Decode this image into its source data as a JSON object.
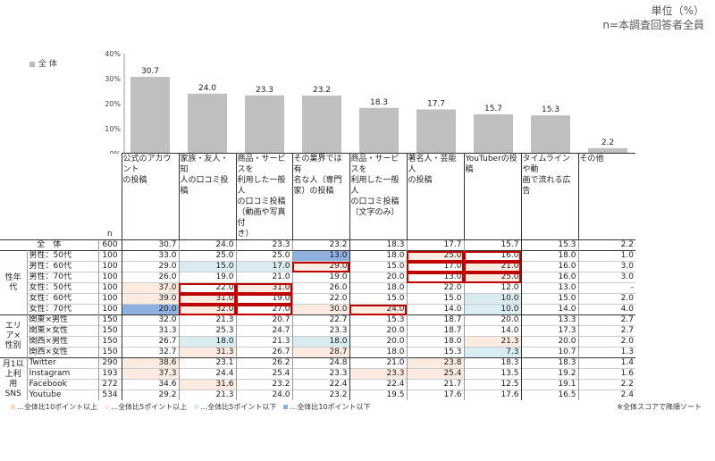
{
  "unit_line1": "単位（%）",
  "unit_line2": "n=本調査回答者全員",
  "legend_label": "全 体",
  "n_label": "n",
  "chart_data": {
    "type": "bar",
    "ylim": [
      0,
      40
    ],
    "yticks": [
      "40%",
      "30%",
      "20%",
      "10%",
      "0%"
    ],
    "categories": [
      "公式のアカウントの投稿",
      "家族・友人・知人の口コミ投稿",
      "商品・サービスを利用した一般人の口コミ投稿（動画や写真付き）",
      "その業界では有名な人（専門家）の投稿",
      "商品・サービスを利用した一般人の口コミ投稿（文字のみ）",
      "著名人・芸能人の投稿",
      "YouTuberの投稿",
      "タイムラインや動画で流れる広告",
      "その他"
    ],
    "values": [
      30.7,
      24.0,
      23.3,
      23.2,
      18.3,
      17.7,
      15.7,
      15.3,
      2.2
    ],
    "value_labels": [
      "30.7",
      "24.0",
      "23.3",
      "23.2",
      "18.3",
      "17.7",
      "15.7",
      "15.3",
      "2.2"
    ],
    "colors": {
      "bar": "#bfbfbf",
      "p10": "#f8d7c2",
      "p5": "#fcebe0",
      "m5": "#d9ecf2",
      "m10": "#8fb1e0",
      "highlight": "#c00000"
    }
  },
  "table": {
    "headers": [
      [
        "公式のアカウント",
        "の投稿"
      ],
      [
        "家族・友人・知",
        "人の口コミ投稿"
      ],
      [
        "商品・サービスを",
        "利用した一般人",
        "の口コミ投稿",
        "（動画や写真付",
        "き）"
      ],
      [
        "その業界では有",
        "名な人（専門",
        "家）の投稿"
      ],
      [
        "商品・サービスを",
        "利用した一般人",
        "の口コミ投稿",
        "（文字のみ）"
      ],
      [
        "著名人・芸能人",
        "の投稿"
      ],
      [
        "YouTuberの投",
        "稿"
      ],
      [
        "タイムラインや動",
        "画で流れる広告"
      ],
      [
        "その他"
      ]
    ],
    "rows": [
      {
        "group": "",
        "label": "全　体",
        "n": "600",
        "vals": [
          "30.7",
          "24.0",
          "23.3",
          "23.2",
          "18.3",
          "17.7",
          "15.7",
          "15.3",
          "2.2"
        ],
        "style": [
          "",
          "",
          "",
          "",
          "",
          "",
          "",
          "",
          ""
        ],
        "box": [
          0,
          0,
          0,
          0,
          0,
          0,
          0,
          0,
          0
        ]
      },
      {
        "group": "性年代",
        "label": "男性：50代",
        "n": "100",
        "vals": [
          "33.0",
          "25.0",
          "25.0",
          "13.0",
          "18.0",
          "25.0",
          "16.0",
          "18.0",
          "1.0"
        ],
        "style": [
          "",
          "",
          "",
          "m10",
          "",
          "p5",
          "",
          "",
          ""
        ],
        "box": [
          0,
          0,
          0,
          0,
          0,
          1,
          1,
          0,
          0
        ]
      },
      {
        "group": "",
        "label": "男性：60代",
        "n": "100",
        "vals": [
          "29.0",
          "15.0",
          "17.0",
          "29.0",
          "15.0",
          "17.0",
          "21.0",
          "16.0",
          "3.0"
        ],
        "style": [
          "",
          "m5",
          "m5",
          "p5",
          "",
          "",
          "p5",
          "",
          ""
        ],
        "box": [
          0,
          0,
          0,
          1,
          0,
          1,
          1,
          0,
          0
        ]
      },
      {
        "group": "",
        "label": "男性：70代",
        "n": "100",
        "vals": [
          "26.0",
          "19.0",
          "21.0",
          "19.0",
          "20.0",
          "13.0",
          "25.0",
          "16.0",
          "3.0"
        ],
        "style": [
          "",
          "",
          "",
          "",
          "",
          "",
          "p5",
          "",
          ""
        ],
        "box": [
          0,
          0,
          0,
          0,
          0,
          1,
          1,
          0,
          0
        ]
      },
      {
        "group": "",
        "label": "女性：50代",
        "n": "100",
        "vals": [
          "37.0",
          "22.0",
          "31.0",
          "26.0",
          "18.0",
          "22.0",
          "12.0",
          "13.0",
          "-"
        ],
        "style": [
          "p5",
          "",
          "p5",
          "",
          "",
          "",
          "",
          "",
          ""
        ],
        "box": [
          0,
          1,
          1,
          0,
          0,
          0,
          0,
          0,
          0
        ]
      },
      {
        "group": "",
        "label": "女性：60代",
        "n": "100",
        "vals": [
          "39.0",
          "31.0",
          "19.0",
          "22.0",
          "15.0",
          "15.0",
          "10.0",
          "15.0",
          "2.0"
        ],
        "style": [
          "p5",
          "p5",
          "",
          "",
          "",
          "",
          "m5",
          "",
          ""
        ],
        "box": [
          0,
          1,
          1,
          0,
          0,
          0,
          0,
          0,
          0
        ]
      },
      {
        "group": "",
        "label": "女性：70代",
        "n": "100",
        "vals": [
          "20.0",
          "32.0",
          "27.0",
          "30.0",
          "24.0",
          "14.0",
          "10.0",
          "14.0",
          "4.0"
        ],
        "style": [
          "m10",
          "p5",
          "",
          "p5",
          "p5",
          "",
          "m5",
          "",
          ""
        ],
        "box": [
          0,
          1,
          1,
          0,
          1,
          0,
          0,
          0,
          0
        ]
      },
      {
        "group": "エリア×性別",
        "label": "関東×男性",
        "n": "150",
        "vals": [
          "32.0",
          "21.3",
          "20.7",
          "22.7",
          "15.3",
          "18.7",
          "20.0",
          "13.3",
          "2.7"
        ],
        "style": [
          "",
          "",
          "",
          "",
          "",
          "",
          "",
          "",
          ""
        ],
        "box": [
          0,
          0,
          0,
          0,
          0,
          0,
          0,
          0,
          0
        ]
      },
      {
        "group": "",
        "label": "関東×女性",
        "n": "150",
        "vals": [
          "31.3",
          "25.3",
          "24.7",
          "23.3",
          "20.0",
          "18.7",
          "14.0",
          "17.3",
          "2.7"
        ],
        "style": [
          "",
          "",
          "",
          "",
          "",
          "",
          "",
          "",
          ""
        ],
        "box": [
          0,
          0,
          0,
          0,
          0,
          0,
          0,
          0,
          0
        ]
      },
      {
        "group": "",
        "label": "関西×男性",
        "n": "150",
        "vals": [
          "26.7",
          "18.0",
          "21.3",
          "18.0",
          "20.0",
          "18.0",
          "21.3",
          "20.0",
          "2.0"
        ],
        "style": [
          "",
          "m5",
          "",
          "m5",
          "",
          "",
          "p5",
          "",
          ""
        ],
        "box": [
          0,
          0,
          0,
          0,
          0,
          0,
          0,
          0,
          0
        ]
      },
      {
        "group": "",
        "label": "関西×女性",
        "n": "150",
        "vals": [
          "32.7",
          "31.3",
          "26.7",
          "28.7",
          "18.0",
          "15.3",
          "7.3",
          "10.7",
          "1.3"
        ],
        "style": [
          "",
          "p5",
          "",
          "p5",
          "",
          "",
          "m5",
          "",
          ""
        ],
        "box": [
          0,
          0,
          0,
          0,
          0,
          0,
          0,
          0,
          0
        ]
      },
      {
        "group": "月1以上利用SNS",
        "label": "Twitter",
        "n": "290",
        "vals": [
          "38.6",
          "23.1",
          "26.2",
          "24.8",
          "21.0",
          "23.8",
          "18.3",
          "18.3",
          "1.4"
        ],
        "style": [
          "p5",
          "",
          "",
          "",
          "",
          "p5",
          "",
          "",
          ""
        ],
        "box": [
          0,
          0,
          0,
          0,
          0,
          0,
          0,
          0,
          0
        ]
      },
      {
        "group": "",
        "label": "Instagram",
        "n": "193",
        "vals": [
          "37.3",
          "24.4",
          "25.4",
          "23.3",
          "23.3",
          "25.4",
          "13.5",
          "19.2",
          "1.6"
        ],
        "style": [
          "p5",
          "",
          "",
          "",
          "p5",
          "p5",
          "",
          "",
          ""
        ],
        "box": [
          0,
          0,
          0,
          0,
          0,
          0,
          0,
          0,
          0
        ]
      },
      {
        "group": "",
        "label": "Facebook",
        "n": "272",
        "vals": [
          "34.6",
          "31.6",
          "23.2",
          "22.4",
          "22.4",
          "21.7",
          "12.5",
          "19.1",
          "2.2"
        ],
        "style": [
          "",
          "p5",
          "",
          "",
          "",
          "",
          "",
          "",
          ""
        ],
        "box": [
          0,
          0,
          0,
          0,
          0,
          0,
          0,
          0,
          0
        ]
      },
      {
        "group": "",
        "label": "Youtube",
        "n": "534",
        "vals": [
          "29.2",
          "21.3",
          "24.0",
          "23.2",
          "19.5",
          "17.6",
          "17.6",
          "16.5",
          "2.4"
        ],
        "style": [
          "",
          "",
          "",
          "",
          "",
          "",
          "",
          "",
          ""
        ],
        "box": [
          0,
          0,
          0,
          0,
          0,
          0,
          0,
          0,
          0
        ]
      }
    ]
  },
  "footer": {
    "legend": [
      {
        "style": "p10",
        "text": "…全体比10ポイント以上"
      },
      {
        "style": "p5",
        "text": "…全体比5ポイント以上"
      },
      {
        "style": "m5",
        "text": "…全体比5ポイント以下"
      },
      {
        "style": "m10",
        "text": "…全体比10ポイント以下"
      }
    ],
    "note": "※全体スコアで降順ソート"
  }
}
